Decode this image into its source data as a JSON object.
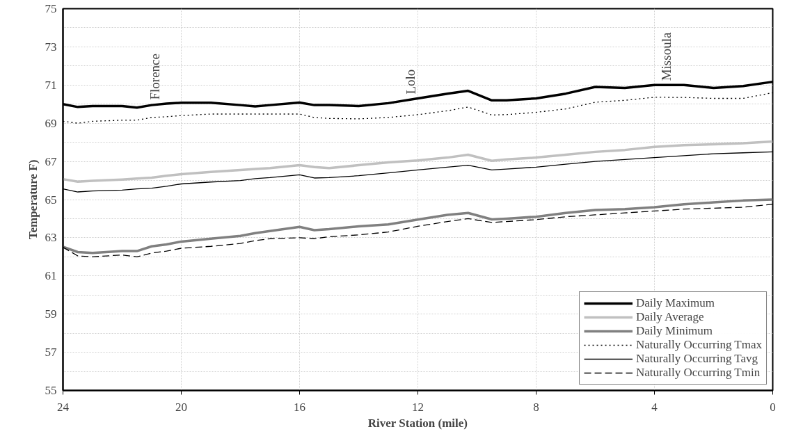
{
  "chart_data": {
    "type": "line",
    "xlabel": "River Station (mile)",
    "ylabel": "Temperature F)",
    "x": [
      24,
      23.5,
      23,
      22,
      21.5,
      21,
      20.5,
      20,
      19,
      18,
      17.5,
      17,
      16,
      15.5,
      15,
      14,
      13,
      12,
      11,
      10.3,
      9.5,
      9,
      8,
      7,
      6,
      5,
      4,
      3,
      2,
      1,
      0
    ],
    "series": [
      {
        "name": "Daily Maximum",
        "color": "#000000",
        "line_style": "solid",
        "values": [
          70.0,
          69.85,
          69.9,
          69.9,
          69.82,
          69.95,
          70.03,
          70.07,
          70.07,
          69.95,
          69.88,
          69.95,
          70.08,
          69.95,
          69.95,
          69.9,
          70.05,
          70.3,
          70.55,
          70.7,
          70.2,
          70.2,
          70.3,
          70.55,
          70.9,
          70.85,
          71.0,
          71.0,
          70.85,
          70.95,
          71.17
        ]
      },
      {
        "name": "Daily Average",
        "color": "#c0c0c0",
        "line_style": "solid",
        "values": [
          66.07,
          65.94,
          65.98,
          66.05,
          66.1,
          66.15,
          66.25,
          66.33,
          66.45,
          66.55,
          66.6,
          66.65,
          66.8,
          66.7,
          66.65,
          66.8,
          66.95,
          67.05,
          67.2,
          67.35,
          67.03,
          67.1,
          67.2,
          67.35,
          67.5,
          67.6,
          67.76,
          67.85,
          67.9,
          67.95,
          68.04
        ]
      },
      {
        "name": "Daily Minimum",
        "color": "#808080",
        "line_style": "solid",
        "values": [
          62.53,
          62.25,
          62.2,
          62.3,
          62.3,
          62.55,
          62.65,
          62.8,
          62.95,
          63.1,
          63.24,
          63.35,
          63.57,
          63.4,
          63.45,
          63.6,
          63.7,
          63.95,
          64.2,
          64.3,
          63.96,
          64.0,
          64.1,
          64.3,
          64.45,
          64.5,
          64.6,
          64.75,
          64.85,
          64.95,
          65.0
        ]
      },
      {
        "name": "Naturally Occurring Tmax",
        "color": "#000000",
        "line_style": "dotted",
        "values": [
          69.1,
          69.0,
          69.1,
          69.16,
          69.16,
          69.3,
          69.34,
          69.4,
          69.48,
          69.48,
          69.48,
          69.48,
          69.48,
          69.3,
          69.25,
          69.23,
          69.3,
          69.45,
          69.65,
          69.85,
          69.43,
          69.45,
          69.57,
          69.75,
          70.1,
          70.2,
          70.36,
          70.35,
          70.3,
          70.3,
          70.6
        ]
      },
      {
        "name": "Naturally Occurring Tavg",
        "color": "#000000",
        "line_style": "solid",
        "values": [
          65.56,
          65.4,
          65.45,
          65.5,
          65.56,
          65.6,
          65.7,
          65.82,
          65.92,
          66.0,
          66.1,
          66.15,
          66.3,
          66.13,
          66.15,
          66.25,
          66.4,
          66.55,
          66.7,
          66.8,
          66.55,
          66.6,
          66.7,
          66.85,
          67.0,
          67.1,
          67.2,
          67.3,
          67.4,
          67.45,
          67.5
        ]
      },
      {
        "name": "Naturally Occurring Tmin",
        "color": "#000000",
        "line_style": "dashed",
        "values": [
          62.5,
          62.05,
          62.0,
          62.1,
          62.0,
          62.2,
          62.3,
          62.45,
          62.55,
          62.7,
          62.85,
          62.95,
          63.0,
          62.95,
          63.05,
          63.15,
          63.3,
          63.6,
          63.85,
          64.0,
          63.8,
          63.85,
          63.95,
          64.1,
          64.2,
          64.3,
          64.4,
          64.5,
          64.55,
          64.6,
          64.76
        ]
      }
    ],
    "xlim": [
      24,
      0
    ],
    "xticks": [
      24,
      20,
      16,
      12,
      8,
      4,
      0
    ],
    "ylim": [
      55,
      75
    ],
    "yticks": [
      55,
      57,
      59,
      61,
      63,
      65,
      67,
      69,
      71,
      73,
      75
    ],
    "grid": true,
    "legend": "bottom right",
    "annotations": [
      "Florence",
      "Lolo",
      "Missoula"
    ]
  }
}
